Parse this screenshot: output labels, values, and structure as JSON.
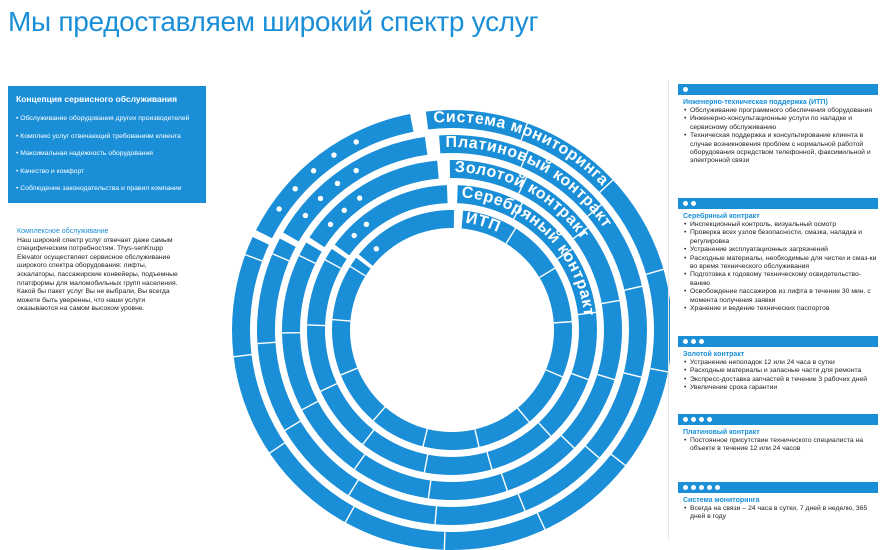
{
  "title": "Мы предоставляем широкий спектр услуг",
  "concept": {
    "heading": "Концепция сервисного обслуживания",
    "items": [
      "Обслуживание оборудования других производителей",
      "Комплекс услуг отвечающий требованиям клиента",
      "Максимальная надежность оборудования",
      "Качество и комфорт",
      "Соблюдение законодательства и правил компании"
    ]
  },
  "complex": {
    "heading": "Комплексное обслуживание",
    "text": "Наш широкий спектр услуг отвечает даже самым специфическим потребностям. Thys-senKrupp Elevator осуществляет сервисное обслуживание широкого спектра оборудования: лифты, эскалаторы, пассажирские конвейеры, подъемные платформы для маломобильных групп населения. Какой бы пакет услуг Вы не выбрали, Вы всегда можете быть уверенны, что наши услуги оказываются на самом высоком уровне."
  },
  "rings": [
    {
      "label": "Система мониторинга",
      "dots": 5
    },
    {
      "label": "Платиновый контракт",
      "dots": 4
    },
    {
      "label": "Золотой контракт",
      "dots": 3
    },
    {
      "label": "Серебряный контракт",
      "dots": 2
    },
    {
      "label": "ИТП",
      "dots": 1
    }
  ],
  "accent_color": "#1a8fd8",
  "panels": [
    {
      "dots": 1,
      "heading": "Инженерно-техническая поддержка (ИТП)",
      "items": [
        "Обслуживание программного обеспечения оборудования",
        "Инженерно-консультационные услуги по наладке и сервисному обслуживанию",
        "Техническая поддержка и консультирование клиента в случае возникновения проблем с нормальной работой оборудования осредством телефонной, факсимильной и электронной связи"
      ]
    },
    {
      "dots": 2,
      "heading": "Серебряный контракт",
      "items": [
        "Инспекционный контроль, визуальный осмотр",
        "Проверка всех узлов безопасности, смазка, наладка и регулировка",
        "Устранение эксплуатационных загрязнений",
        "Расходные материалы, необходимые для чистки и смаз-ки во время технического обслуживания",
        "Подготовка к годовому техническому освидетельство-ванию",
        "Освобождение пассажиров из лифта в течение 30 мин. с момента получения заявки",
        "Хранение и ведение технических паспортов"
      ]
    },
    {
      "dots": 3,
      "heading": "Золотой контракт",
      "items": [
        "Устранение неполадок 12 или 24 часа в сутки",
        "Расходные материалы и запасные части для ремонта",
        "Экспресс-доставка запчастей в течение 3 рабочих дней",
        "Увеличение срока гарантии"
      ]
    },
    {
      "dots": 4,
      "heading": "Платиновый контракт",
      "items": [
        "Постоянное присутствие технического специалиста на объекте в течение 12 или 24 часов"
      ]
    },
    {
      "dots": 5,
      "heading": "Система мониторинга",
      "items": [
        "Всегда на связи – 24 часа в сутки, 7 дней в неделю, 365 дней в году"
      ]
    }
  ]
}
